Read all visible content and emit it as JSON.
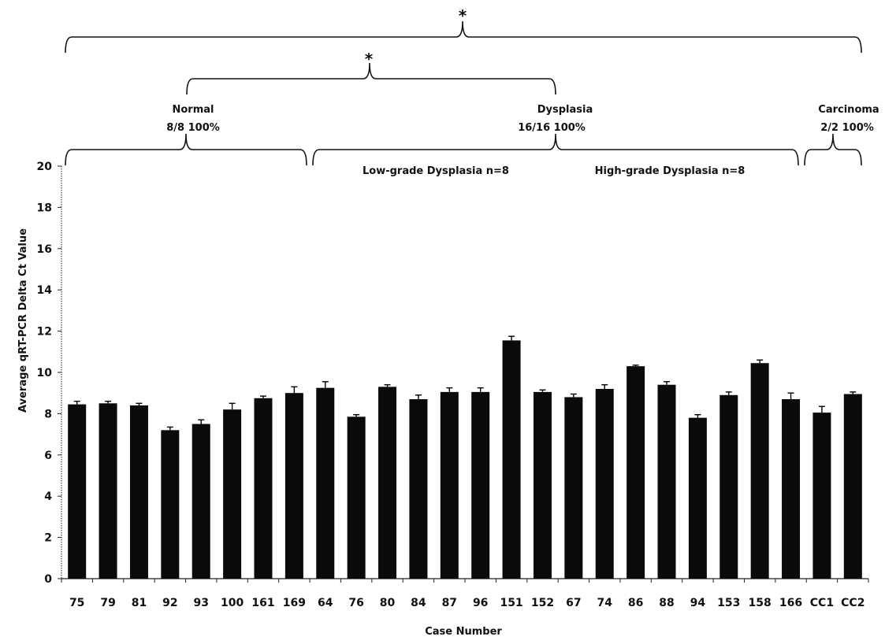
{
  "chart_data": {
    "type": "bar",
    "xlabel": "Case Number",
    "ylabel": "Average qRT-PCR Delta Ct Value",
    "ylim": [
      0,
      20
    ],
    "yticks": [
      "0",
      "2",
      "4",
      "6",
      "8",
      "10",
      "12",
      "14",
      "16",
      "18",
      "20"
    ],
    "categories": [
      "75",
      "79",
      "81",
      "92",
      "93",
      "100",
      "161",
      "169",
      "64",
      "76",
      "80",
      "84",
      "87",
      "96",
      "151",
      "152",
      "67",
      "74",
      "86",
      "88",
      "94",
      "153",
      "158",
      "166",
      "CC1",
      "CC2"
    ],
    "values": [
      8.45,
      8.5,
      8.4,
      7.2,
      7.5,
      8.2,
      8.75,
      9.0,
      9.25,
      7.85,
      9.3,
      8.7,
      9.05,
      9.05,
      11.55,
      9.05,
      8.8,
      9.2,
      10.3,
      9.4,
      7.8,
      8.9,
      10.45,
      8.7,
      8.05,
      8.95
    ],
    "errors": [
      0.15,
      0.1,
      0.1,
      0.15,
      0.2,
      0.3,
      0.1,
      0.3,
      0.3,
      0.1,
      0.1,
      0.2,
      0.2,
      0.2,
      0.2,
      0.1,
      0.15,
      0.2,
      0.05,
      0.15,
      0.15,
      0.15,
      0.15,
      0.3,
      0.3,
      0.1
    ],
    "bar_color": "#0a0a0a",
    "grid": false,
    "legend": "none",
    "group_labels": {
      "normal": "Normal",
      "normal_stat": "8/8  100%",
      "dysplasia": "Dysplasia",
      "dysplasia_stat": "16/16  100%",
      "carcinoma": "Carcinoma",
      "carcinoma_stat": "2/2  100%",
      "low_grade": "Low-grade Dysplasia n=8",
      "high_grade": "High-grade Dysplasia n=8"
    },
    "significance_marker": "*"
  }
}
